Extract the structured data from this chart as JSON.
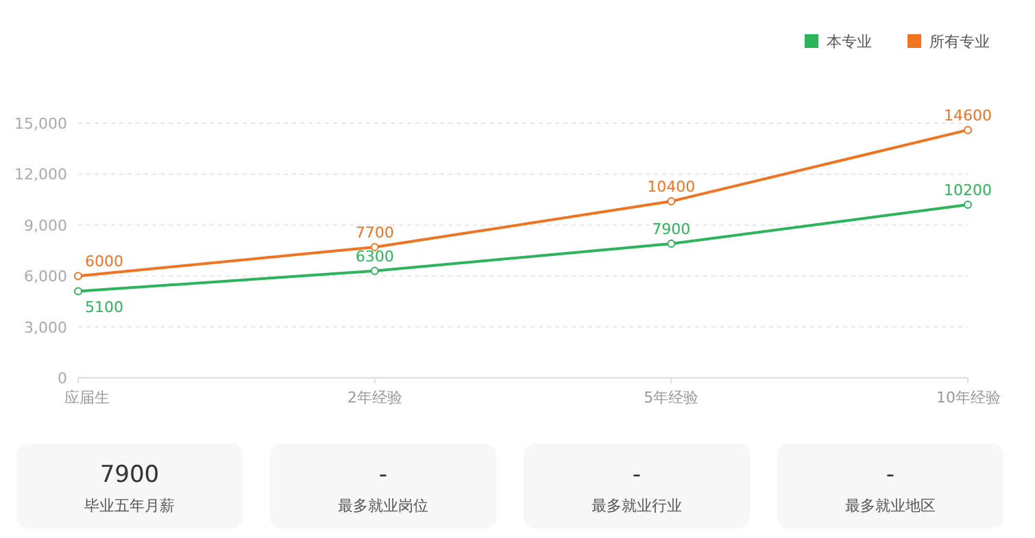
{
  "chart_data": [
    {
      "type": "line",
      "categories": [
        "应届生",
        "2年经验",
        "5年经验",
        "10年经验"
      ],
      "series": [
        {
          "name": "本专业",
          "color": "#2bb45a",
          "values": [
            5100,
            6300,
            7900,
            10200
          ]
        },
        {
          "name": "所有专业",
          "color": "#f07320",
          "values": [
            6000,
            7700,
            10400,
            14600
          ]
        }
      ],
      "ylim": [
        0,
        15000
      ],
      "yticks": [
        0,
        {
          "value": 3000,
          "label": "3,000"
        },
        {
          "value": 6000,
          "label": "6,000"
        },
        {
          "value": 9000,
          "label": "9,000"
        },
        {
          "value": 12000,
          "label": "12,000"
        },
        {
          "value": 15000,
          "label": "15,000"
        }
      ],
      "grid": "y",
      "legend": "top right",
      "marker": "circle",
      "data_labels": true
    },
    {
      "type": "other",
      "annotations": [
        "7900",
        "毕业五年月薪",
        "-",
        "最多就业岗位",
        "-",
        "最多就业行业",
        "-",
        "最多就业地区"
      ]
    }
  ]
}
